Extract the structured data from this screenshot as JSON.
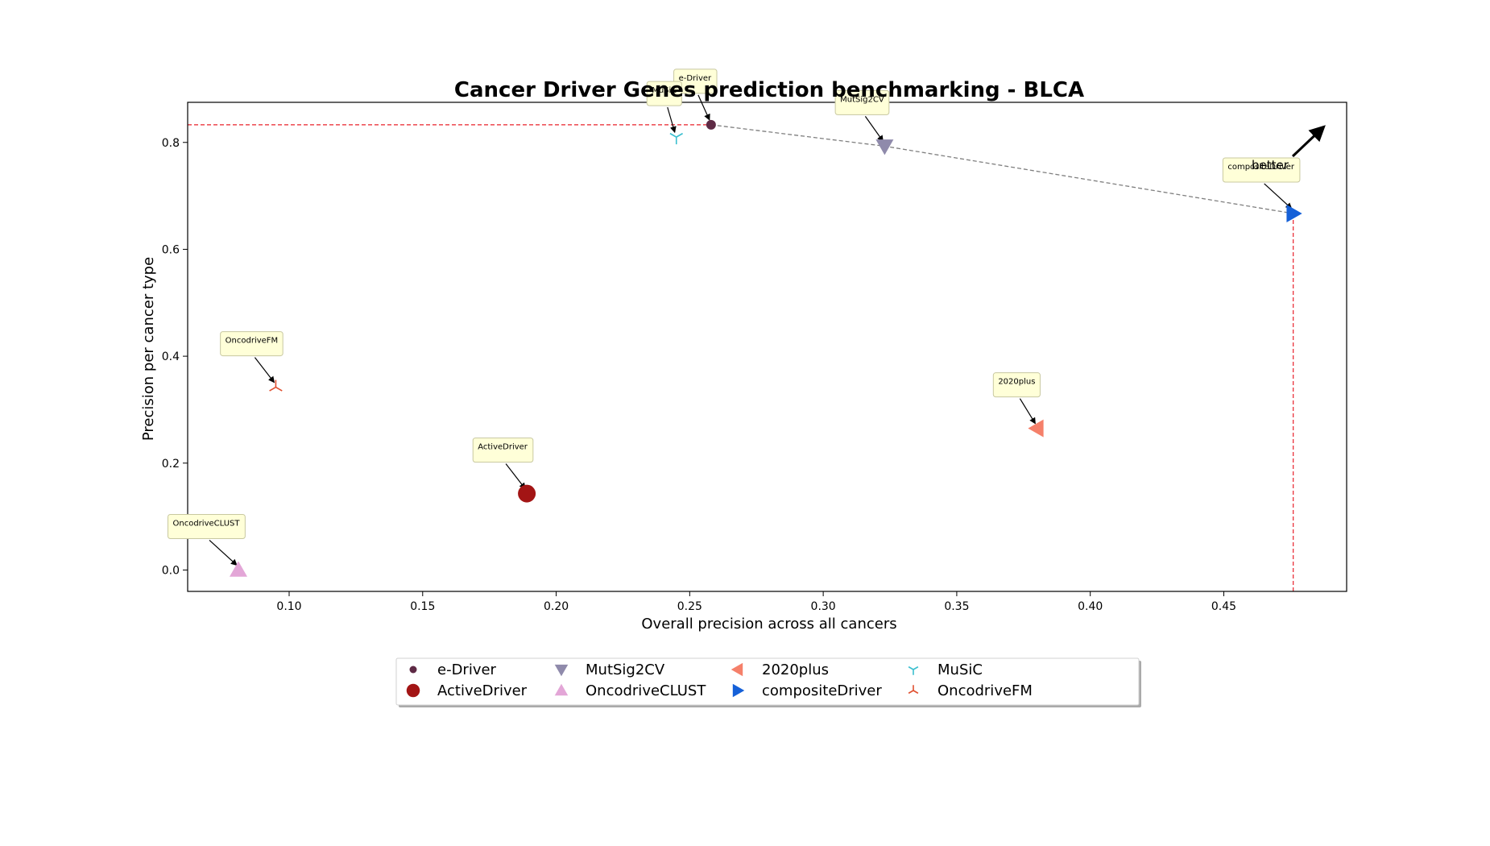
{
  "chart_data": {
    "type": "scatter",
    "title": "Cancer Driver Genes prediction benchmarking - BLCA",
    "xlabel": "Overall precision across all cancers",
    "ylabel": "Precision per cancer type",
    "xlim": [
      0.062,
      0.496
    ],
    "ylim": [
      -0.04,
      0.875
    ],
    "xticks": [
      0.1,
      0.15,
      0.2,
      0.25,
      0.3,
      0.35,
      0.4,
      0.45
    ],
    "yticks": [
      0.0,
      0.2,
      0.4,
      0.6,
      0.8
    ],
    "grid": false,
    "legend_placement": "bottom-center, below axes",
    "series": [
      {
        "name": "e-Driver",
        "x": 0.258,
        "y": 0.833,
        "marker": "circle-small",
        "color": "#5e2a45",
        "annotation": "e-Driver"
      },
      {
        "name": "ActiveDriver",
        "x": 0.189,
        "y": 0.143,
        "marker": "circle-large",
        "color": "#a31515",
        "annotation": "ActiveDriver"
      },
      {
        "name": "MutSig2CV",
        "x": 0.323,
        "y": 0.793,
        "marker": "triangle-down",
        "color": "#8f8aab",
        "annotation": "MutSig2CV"
      },
      {
        "name": "OncodriveCLUST",
        "x": 0.081,
        "y": 0.0,
        "marker": "triangle-up",
        "color": "#e3a6d7",
        "annotation": "OncodriveCLUST"
      },
      {
        "name": "2020plus",
        "x": 0.38,
        "y": 0.265,
        "marker": "triangle-left",
        "color": "#f5806a",
        "annotation": "2020plus"
      },
      {
        "name": "compositeDriver",
        "x": 0.476,
        "y": 0.667,
        "marker": "triangle-right",
        "color": "#1560d8",
        "annotation": "compositeDriver"
      },
      {
        "name": "MuSiC",
        "x": 0.245,
        "y": 0.81,
        "marker": "tri-down",
        "color": "#3bbfcf",
        "annotation": "MuSiC"
      },
      {
        "name": "OncodriveFM",
        "x": 0.095,
        "y": 0.342,
        "marker": "tri-up",
        "color": "#e05030",
        "annotation": "OncodriveFM"
      }
    ],
    "pareto_front": [
      "e-Driver",
      "MutSig2CV",
      "compositeDriver"
    ],
    "reference_lines": {
      "horizontal_y": 0.833,
      "vertical_x": 0.476,
      "color": "#e8202a"
    },
    "better_annotation": "better"
  },
  "colors": {
    "annotation_box_fill": "#ffffd8",
    "annotation_box_stroke": "#c8c8a0",
    "pareto_line": "#7f7f7f",
    "axes": "#000000"
  }
}
